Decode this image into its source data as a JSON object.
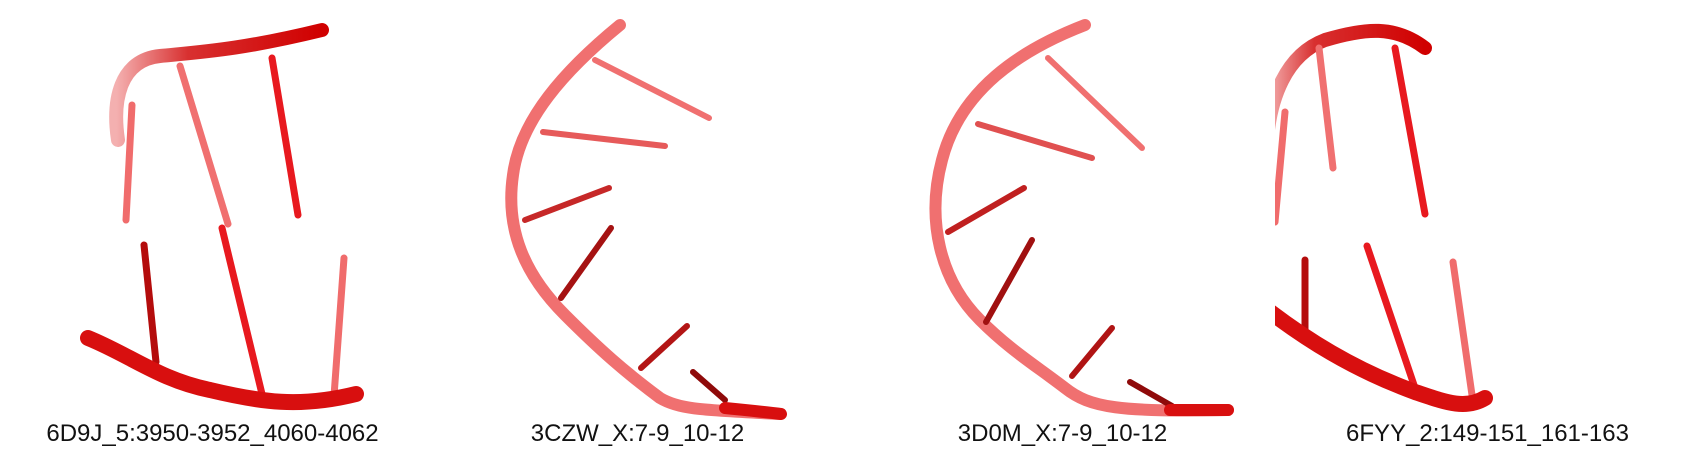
{
  "colors": {
    "dark": "#c00000",
    "bright": "#e8191f",
    "light": "#f07070",
    "pale": "#f58a8a",
    "deep": "#8f0a0a"
  },
  "panels": [
    {
      "label": "6D9J_5:3950-3952_4060-4062"
    },
    {
      "label": "3CZW_X:7-9_10-12"
    },
    {
      "label": "3D0M_X:7-9_10-12"
    },
    {
      "label": "6FYY_2:149-151_161-163"
    }
  ]
}
